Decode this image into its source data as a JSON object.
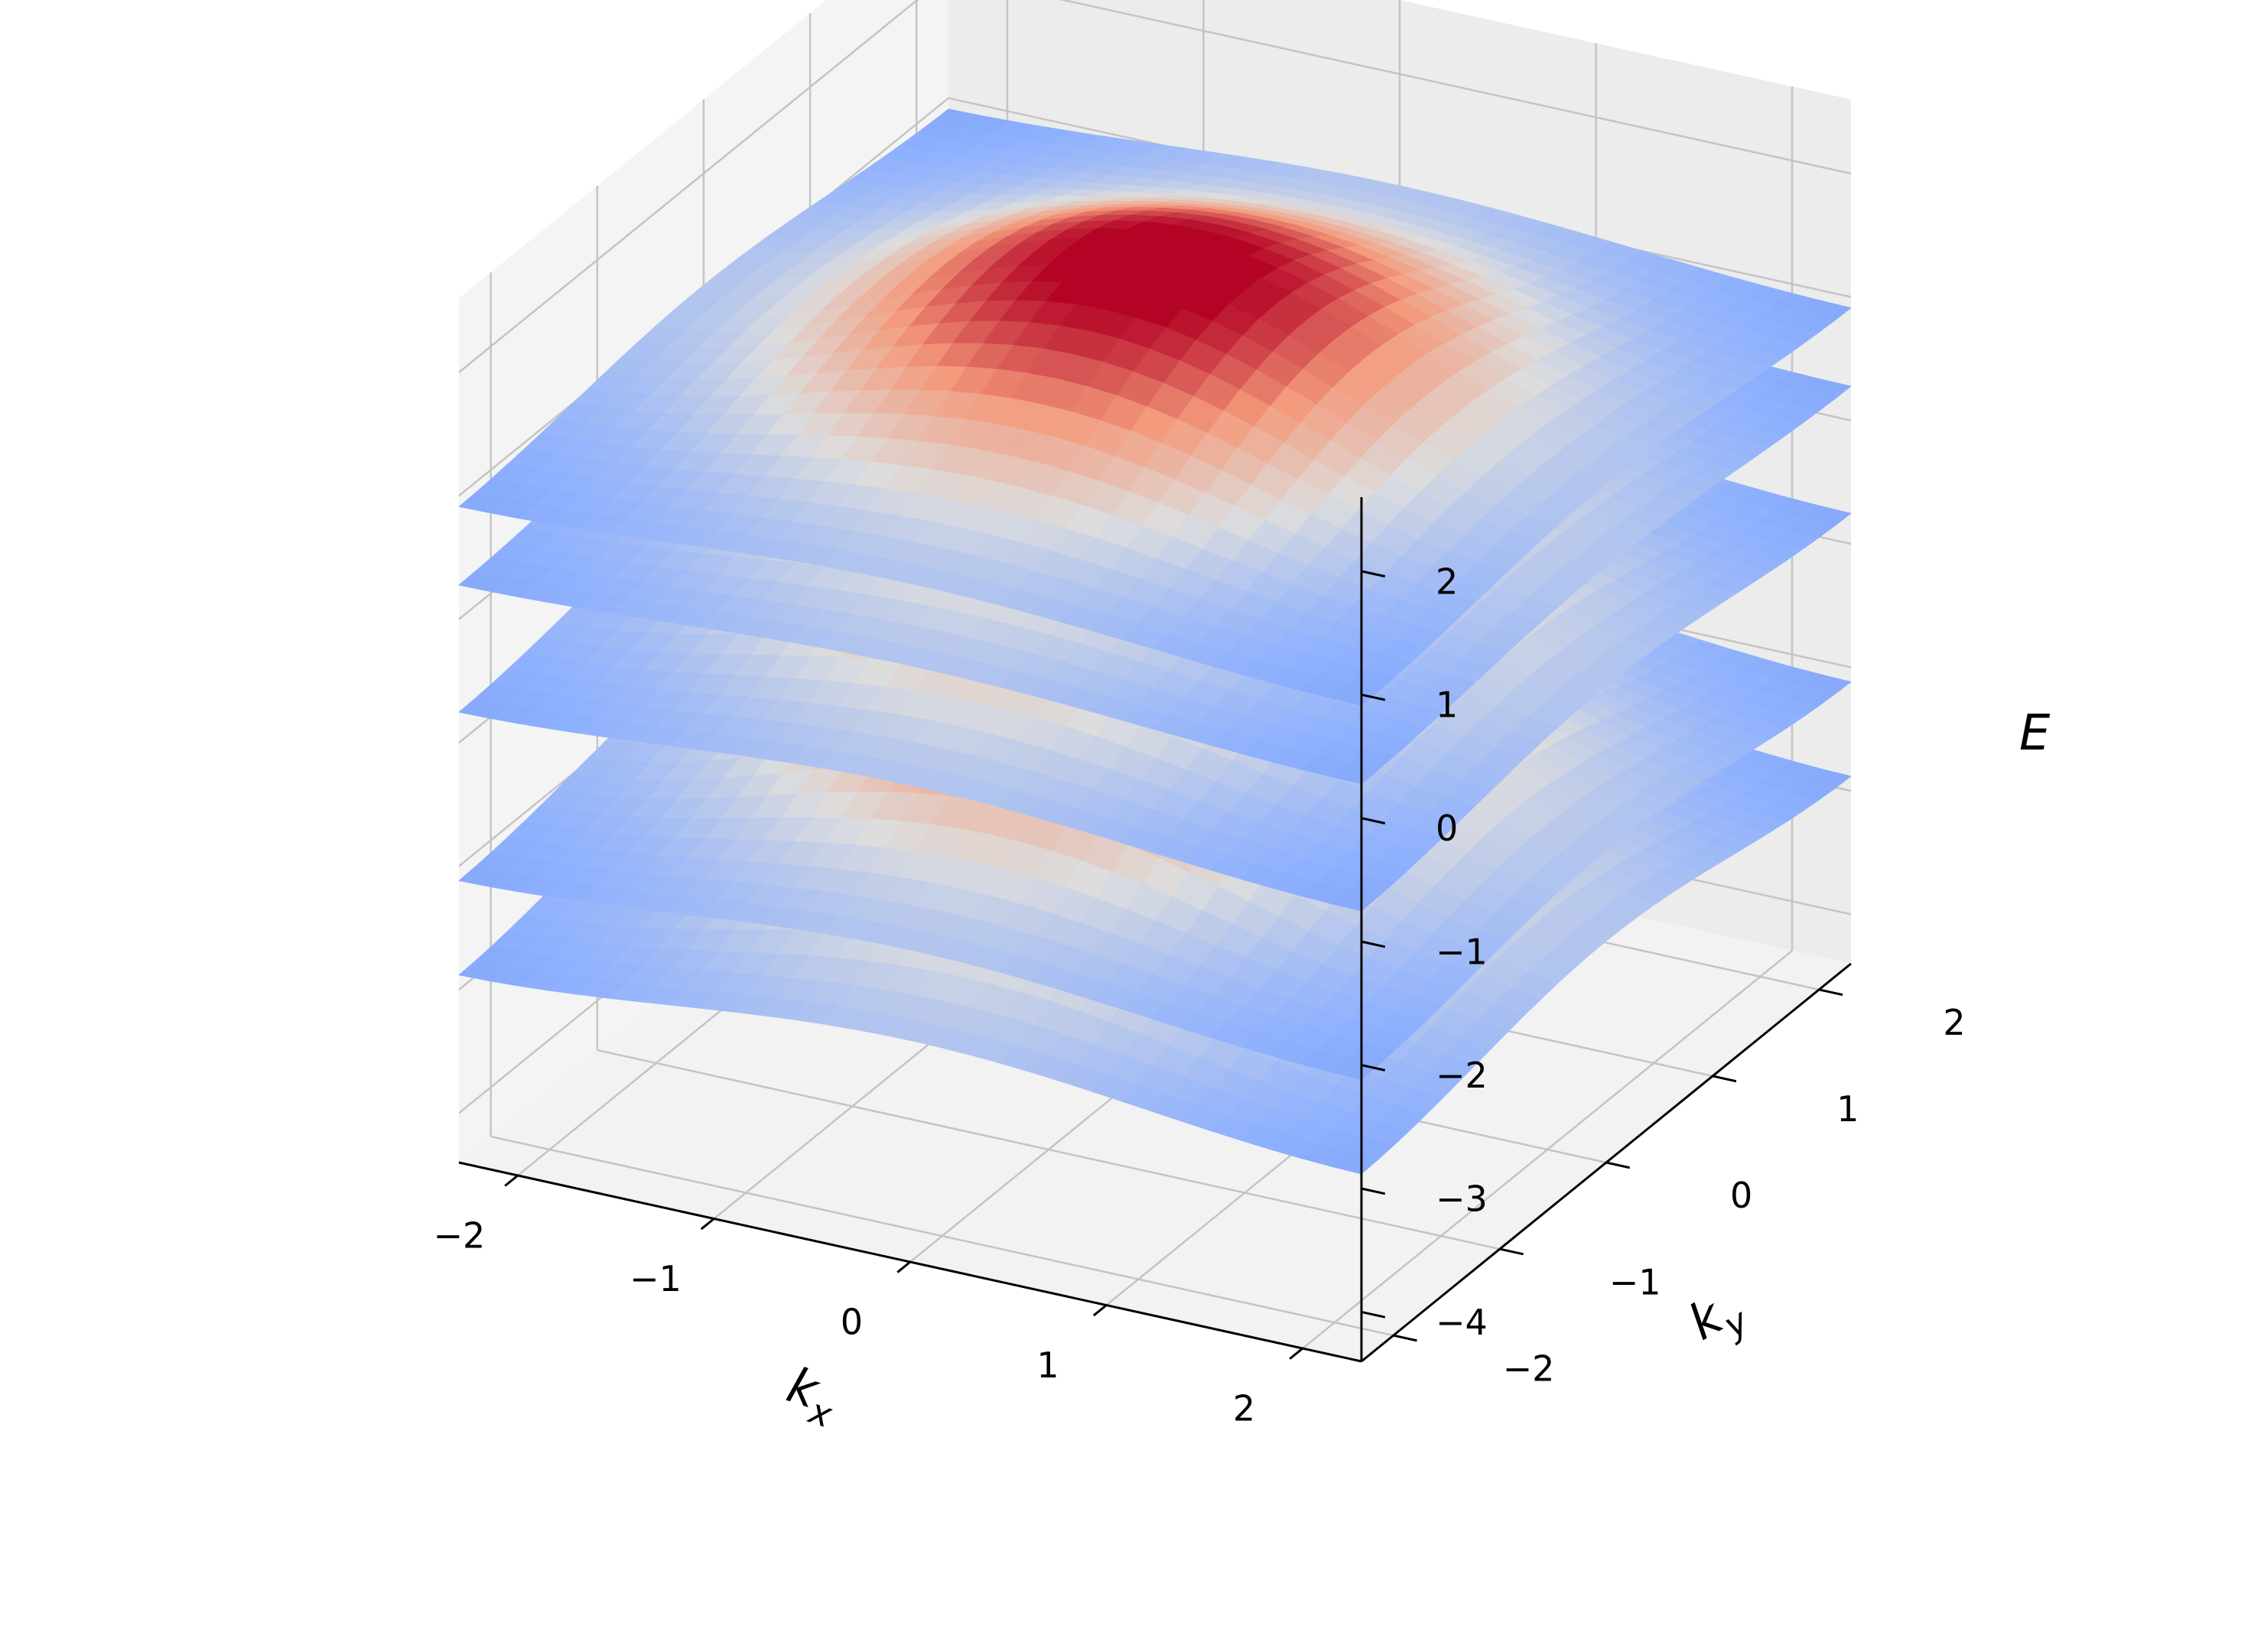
{
  "chart_data": {
    "type": "surface3d",
    "title": "",
    "xlabel": "k",
    "xlabel_sub": "x",
    "ylabel": "k",
    "ylabel_sub": "y",
    "zlabel": "E",
    "xlim": [
      -2.3,
      2.3
    ],
    "ylim": [
      -2.3,
      2.3
    ],
    "zlim": [
      -4.4,
      2.6
    ],
    "x_ticks": [
      -2,
      -1,
      0,
      1,
      2
    ],
    "y_ticks": [
      -2,
      -1,
      0,
      1,
      2
    ],
    "z_ticks": [
      -4,
      -3,
      -2,
      -1,
      0,
      1,
      2
    ],
    "x_tick_labels": [
      "−2",
      "−1",
      "0",
      "1",
      "2"
    ],
    "y_tick_labels": [
      "−2",
      "−1",
      "0",
      "1",
      "2"
    ],
    "z_tick_labels": [
      "−4",
      "−3",
      "−2",
      "−1",
      "0",
      "1",
      "2"
    ],
    "colormap": "coolwarm",
    "grid": true,
    "series": [
      {
        "offset": -2.3,
        "amplitude": 0.9
      },
      {
        "offset": -1.6,
        "amplitude": 0.8
      },
      {
        "offset": -0.3,
        "amplitude": 0.7
      },
      {
        "offset": 0.6,
        "amplitude": 0.5
      },
      {
        "offset": 1.3,
        "amplitude": 0.6
      }
    ]
  }
}
